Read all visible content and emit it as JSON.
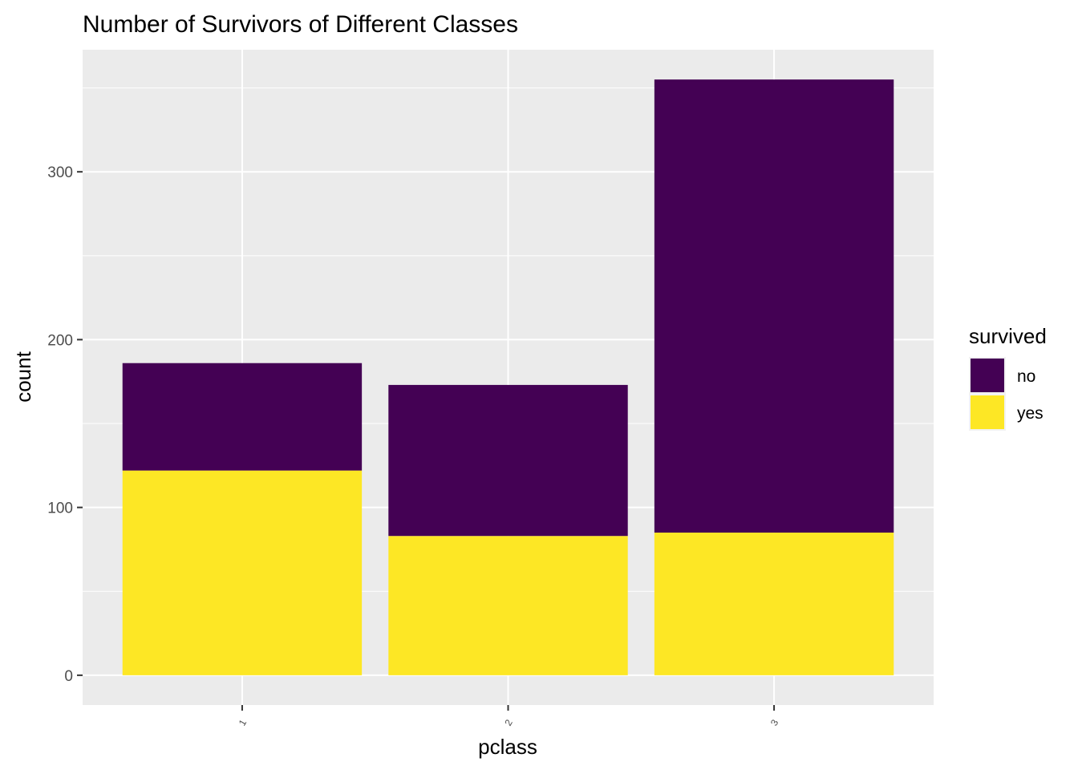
{
  "chart_data": {
    "type": "bar",
    "stacked": true,
    "title": "Number of Survivors of Different Classes",
    "xlabel": "pclass",
    "ylabel": "count",
    "categories": [
      "1",
      "2",
      "3"
    ],
    "series": [
      {
        "name": "no",
        "values": [
          64,
          90,
          270
        ],
        "color": "#440154"
      },
      {
        "name": "yes",
        "values": [
          122,
          83,
          85
        ],
        "color": "#FDE725"
      }
    ],
    "yticks": [
      0,
      100,
      200,
      300
    ],
    "ylim": [
      -17.75,
      372.75
    ],
    "grid": true,
    "panel_background": "#EBEBEB",
    "legend": {
      "title": "survived",
      "position": "right"
    }
  }
}
